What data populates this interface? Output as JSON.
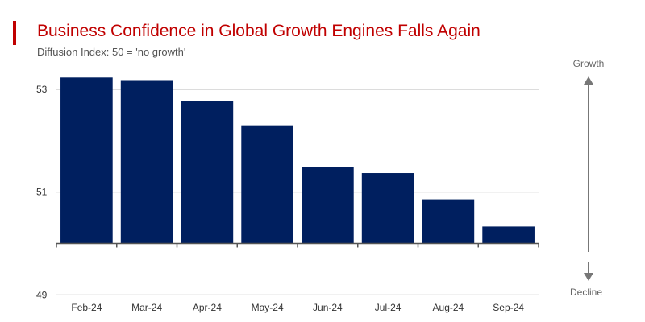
{
  "title": "Business Confidence in Global Growth Engines Falls Again",
  "subtitle": "Diffusion Index: 50 = 'no growth'",
  "colors": {
    "title": "#c00000",
    "accent": "#c00000",
    "bar": "#001f5f",
    "grid": "#c8c8c8",
    "axis": "#555555",
    "arrow": "#777777"
  },
  "direction": {
    "up_label": "Growth",
    "down_label": "Decline"
  },
  "chart_data": {
    "type": "bar",
    "categories": [
      "Feb-24",
      "Mar-24",
      "Apr-24",
      "May-24",
      "Jun-24",
      "Jul-24",
      "Aug-24",
      "Sep-24"
    ],
    "values": [
      53.23,
      53.18,
      52.78,
      52.3,
      51.48,
      51.37,
      50.86,
      50.33
    ],
    "baseline": 50,
    "ylim": [
      49,
      53.7
    ],
    "yticks": [
      49,
      51,
      53
    ],
    "grid": true,
    "xlabel": "",
    "ylabel": ""
  }
}
